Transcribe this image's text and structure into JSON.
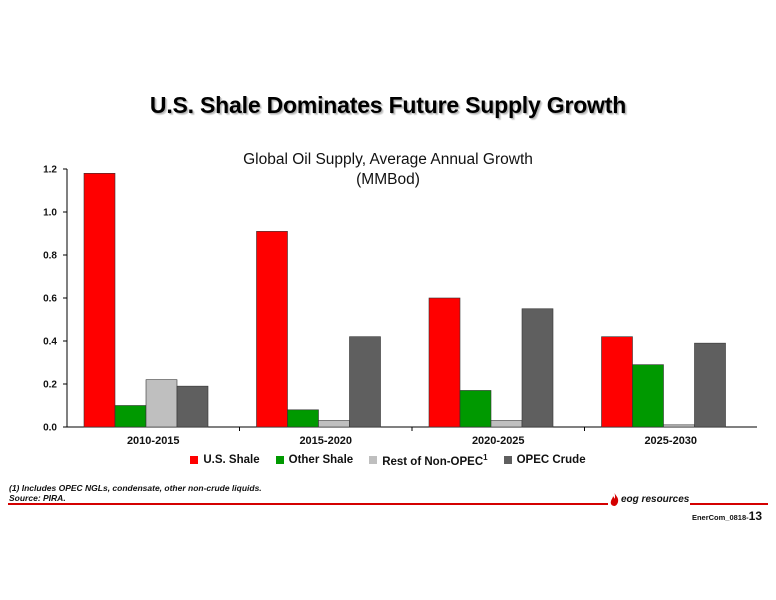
{
  "slide": {
    "title": "U.S. Shale Dominates Future Supply Growth",
    "footnote": "(1) Includes OPEC NGLs, condensate, other non-crude liquids.",
    "source": "Source: PIRA.",
    "logo_text": "eog resources",
    "doc_code": "EnerCom_0818-",
    "page_number": "13"
  },
  "colors": {
    "us_shale": "#ff0000",
    "other_shale": "#009900",
    "rest_non_opec": "#bfbfbf",
    "opec_crude": "#5f5f5f",
    "accent_red": "#d40000"
  },
  "chart_data": {
    "type": "bar",
    "title": "Global Oil Supply, Average Annual Growth",
    "subtitle": "(MMBod)",
    "categories": [
      "2010-2015",
      "2015-2020",
      "2020-2025",
      "2025-2030"
    ],
    "series": [
      {
        "name": "U.S. Shale",
        "values": [
          1.18,
          0.91,
          0.6,
          0.42
        ]
      },
      {
        "name": "Other Shale",
        "values": [
          0.1,
          0.08,
          0.17,
          0.29
        ]
      },
      {
        "name": "Rest of Non-OPEC",
        "superscript": "1",
        "values": [
          0.22,
          0.03,
          0.03,
          0.01
        ]
      },
      {
        "name": "OPEC Crude",
        "values": [
          0.19,
          0.42,
          0.55,
          0.39
        ]
      }
    ],
    "ylim": [
      0,
      1.2
    ],
    "yticks": [
      "0.0",
      "0.2",
      "0.4",
      "0.6",
      "0.8",
      "1.0",
      "1.2"
    ],
    "grid": false,
    "legend_position": "bottom"
  }
}
